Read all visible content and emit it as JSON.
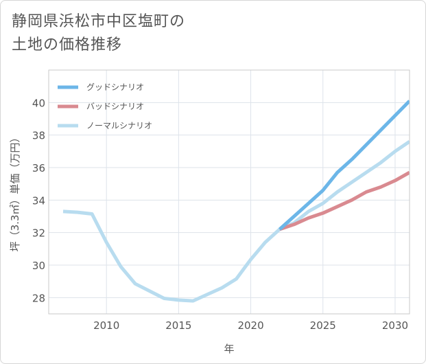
{
  "title_lines": [
    "静岡県浜松市中区塩町の",
    "土地の価格推移"
  ],
  "chart_data": {
    "type": "line",
    "xlabel": "年",
    "ylabel": "坪（3.3㎡）単価（万円）",
    "xlim": [
      2006,
      2031
    ],
    "ylim": [
      27,
      42
    ],
    "x_ticks": [
      2010,
      2015,
      2020,
      2025,
      2030
    ],
    "y_ticks": [
      28,
      30,
      32,
      34,
      36,
      38,
      40
    ],
    "grid": true,
    "legend_position": "top-left",
    "series": [
      {
        "name": "グッドシナリオ",
        "color": "#6cb6e8",
        "x": [
          2022,
          2023,
          2024,
          2025,
          2026,
          2027,
          2028,
          2029,
          2030,
          2031
        ],
        "y": [
          32.2,
          33.0,
          33.8,
          34.6,
          35.7,
          36.5,
          37.4,
          38.3,
          39.2,
          40.1
        ]
      },
      {
        "name": "バッドシナリオ",
        "color": "#d98a90",
        "x": [
          2022,
          2023,
          2024,
          2025,
          2026,
          2027,
          2028,
          2029,
          2030,
          2031
        ],
        "y": [
          32.2,
          32.5,
          32.9,
          33.2,
          33.6,
          34.0,
          34.5,
          34.8,
          35.2,
          35.7
        ]
      },
      {
        "name": "ノーマルシナリオ",
        "color": "#b8dcef",
        "x": [
          2007,
          2008,
          2009,
          2010,
          2011,
          2012,
          2013,
          2014,
          2015,
          2016,
          2017,
          2018,
          2019,
          2020,
          2021,
          2022,
          2023,
          2024,
          2025,
          2026,
          2027,
          2028,
          2029,
          2030,
          2031
        ],
        "y": [
          33.3,
          33.25,
          33.15,
          31.4,
          29.9,
          28.85,
          28.4,
          27.95,
          27.85,
          27.8,
          28.2,
          28.6,
          29.15,
          30.35,
          31.4,
          32.2,
          32.6,
          33.3,
          33.8,
          34.5,
          35.1,
          35.7,
          36.3,
          37.0,
          37.6
        ]
      }
    ]
  }
}
